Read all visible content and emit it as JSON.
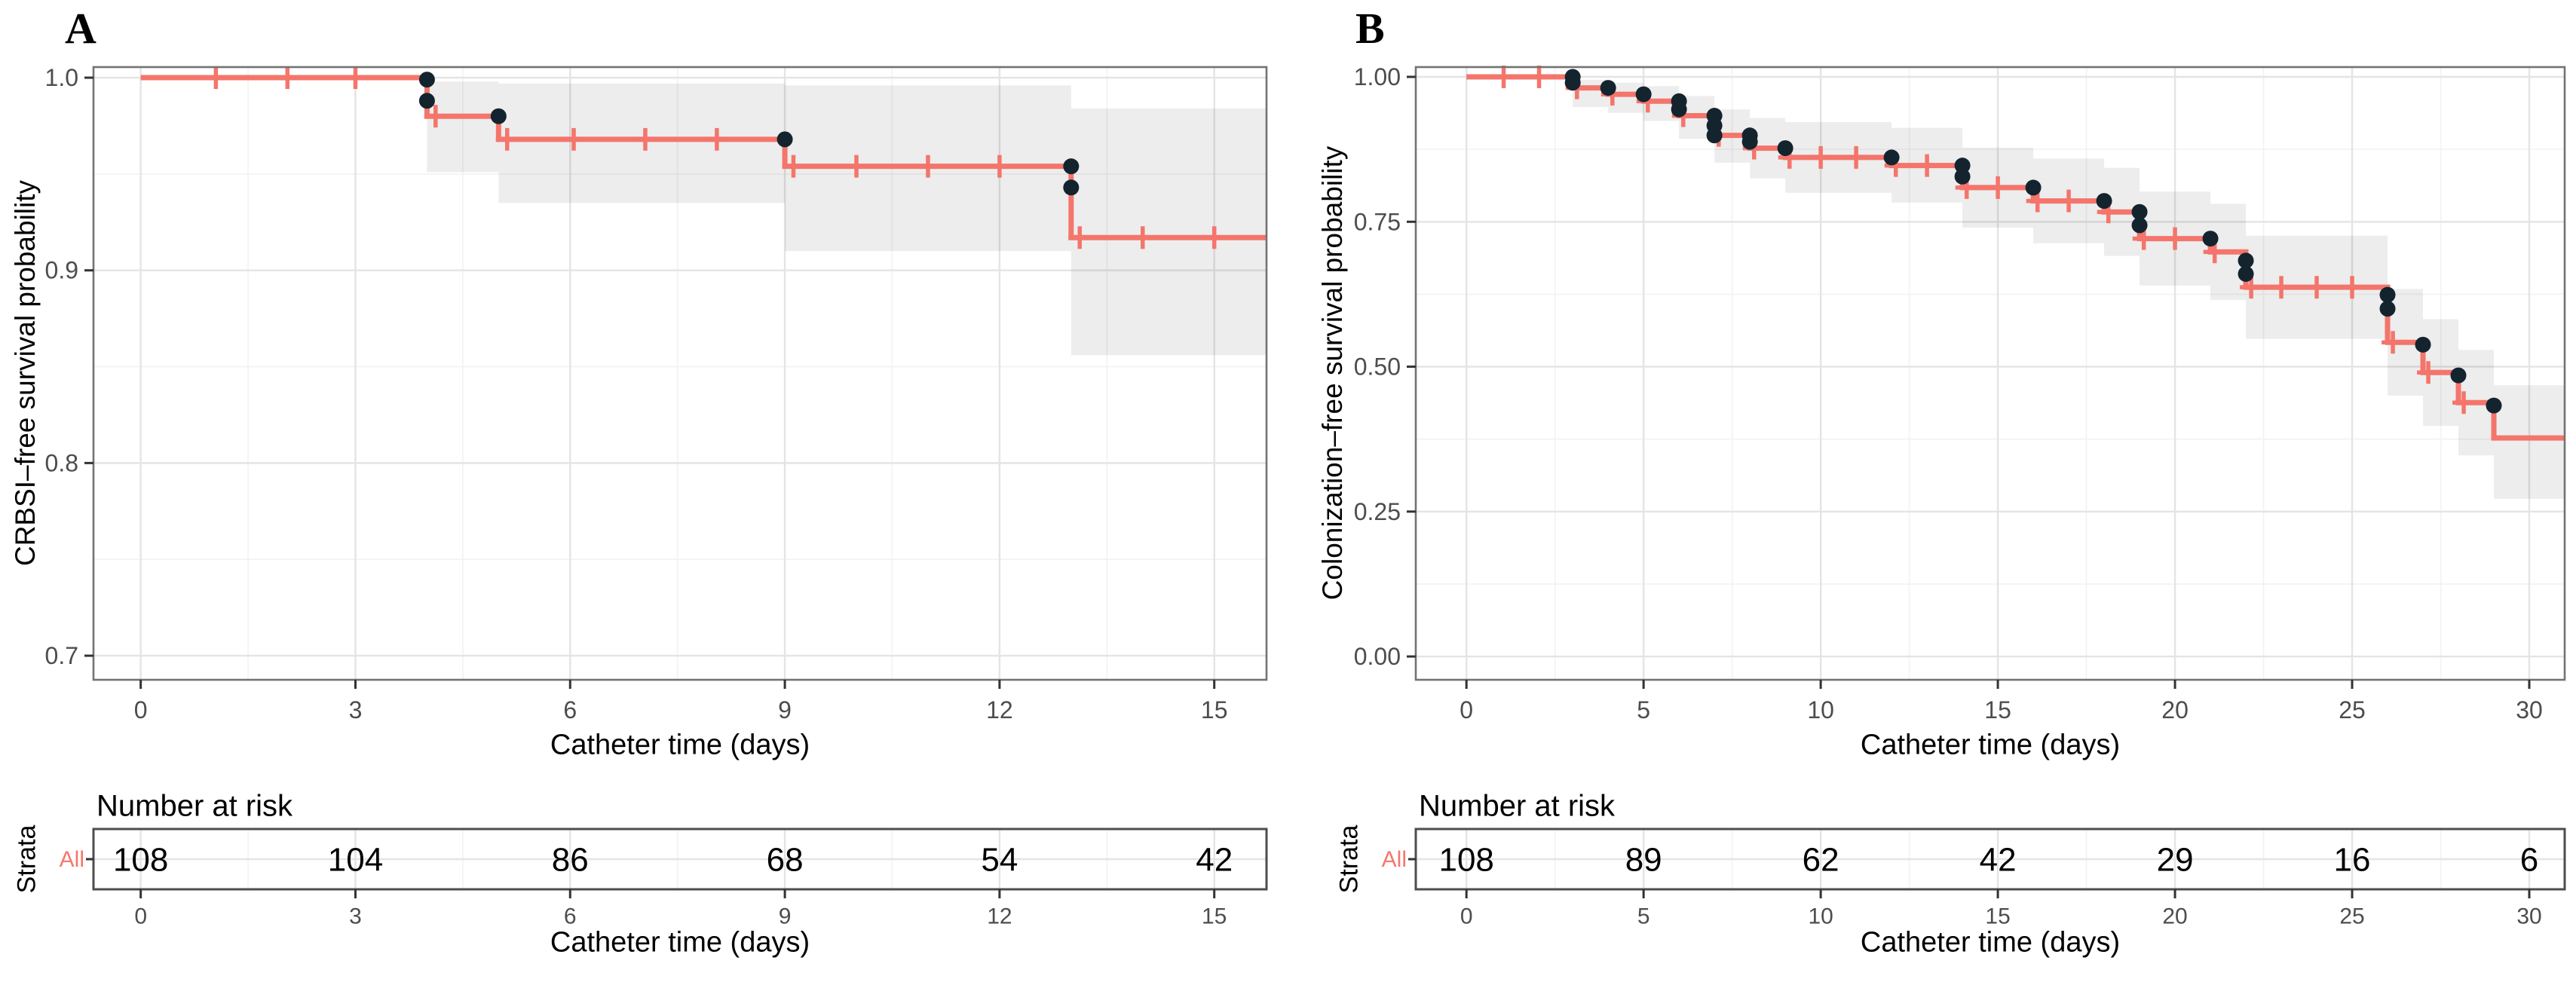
{
  "figure": {
    "colors": {
      "curve": "#F4756B",
      "event_dot": "#14242F",
      "ribbon_fill": "rgba(0,0,0,0.072)",
      "grid_major": "#E4E4E4",
      "grid_minor": "#F2F2F2",
      "axis_text": "#4D4D4D",
      "tick_mark": "#333333",
      "panel_border": "#737373",
      "table_border": "#4D4D4D",
      "strata_color": "#F8766D",
      "background": "#FFFFFF"
    }
  },
  "chart_data": [
    {
      "type": "line",
      "subtype": "kaplan-meier-step",
      "panel_label": "A",
      "xlabel": "Catheter time (days)",
      "ylabel": "CRBSI–free survival probability",
      "risk_table_title": "Number at risk",
      "risk_xlabel": "Catheter time (days)",
      "strata_axis_label": "Strata",
      "strata_name": "All",
      "legend": "none",
      "grid": true,
      "xlim": [
        -0.66,
        15.73
      ],
      "ylim": [
        0.6875,
        1.0055
      ],
      "x_major_ticks": [
        0,
        3,
        6,
        9,
        12,
        15
      ],
      "x_tick_labels": [
        "0",
        "3",
        "6",
        "9",
        "12",
        "15"
      ],
      "x_minor_ticks": [
        1.5,
        4.5,
        7.5,
        10.5,
        13.5
      ],
      "y_major_ticks": [
        0.7,
        0.8,
        0.9,
        1.0
      ],
      "y_tick_labels": [
        "0.7",
        "0.8",
        "0.9",
        "1.0"
      ],
      "y_minor_ticks": [
        0.75,
        0.85,
        0.95
      ],
      "km_steps": [
        {
          "t0": 0,
          "t1": 4,
          "s": 1.0
        },
        {
          "t0": 4,
          "t1": 5,
          "s": 0.98
        },
        {
          "t0": 5,
          "t1": 9,
          "s": 0.968
        },
        {
          "t0": 9,
          "t1": 13,
          "s": 0.954
        },
        {
          "t0": 13,
          "t1": 15.73,
          "s": 0.917
        }
      ],
      "ci_ribbon": [
        {
          "t0": 4,
          "t1": 5,
          "lo": 0.951,
          "hi": 0.998
        },
        {
          "t0": 5,
          "t1": 9,
          "lo": 0.935,
          "hi": 0.997
        },
        {
          "t0": 9,
          "t1": 13,
          "lo": 0.91,
          "hi": 0.996
        },
        {
          "t0": 13,
          "t1": 15.73,
          "lo": 0.856,
          "hi": 0.984
        }
      ],
      "event_dots": [
        {
          "t": 4,
          "s": 0.999
        },
        {
          "t": 4,
          "s": 0.988
        },
        {
          "t": 5,
          "s": 0.98
        },
        {
          "t": 9,
          "s": 0.968
        },
        {
          "t": 13,
          "s": 0.954
        },
        {
          "t": 13,
          "s": 0.943
        }
      ],
      "censor_marks": [
        {
          "t": 1.05,
          "s": 1.0
        },
        {
          "t": 2.05,
          "s": 1.0
        },
        {
          "t": 3.0,
          "s": 1.0
        },
        {
          "t": 4.12,
          "s": 0.98
        },
        {
          "t": 5.12,
          "s": 0.968
        },
        {
          "t": 6.05,
          "s": 0.968
        },
        {
          "t": 7.05,
          "s": 0.968
        },
        {
          "t": 8.05,
          "s": 0.968
        },
        {
          "t": 9.12,
          "s": 0.954
        },
        {
          "t": 10.0,
          "s": 0.954
        },
        {
          "t": 11.0,
          "s": 0.954
        },
        {
          "t": 12.0,
          "s": 0.954
        },
        {
          "t": 13.12,
          "s": 0.917
        },
        {
          "t": 14.0,
          "s": 0.917
        },
        {
          "t": 15.0,
          "s": 0.917
        }
      ],
      "number_at_risk": {
        "times": [
          0,
          3,
          6,
          9,
          12,
          15
        ],
        "tick_labels": [
          "0",
          "3",
          "6",
          "9",
          "12",
          "15"
        ],
        "counts": [
          "108",
          "104",
          "86",
          "68",
          "54",
          "42"
        ]
      }
    },
    {
      "type": "line",
      "subtype": "kaplan-meier-step",
      "panel_label": "B",
      "xlabel": "Catheter time (days)",
      "ylabel": "Colonization–free survival probability",
      "risk_table_title": "Number at risk",
      "risk_xlabel": "Catheter time (days)",
      "strata_axis_label": "Strata",
      "strata_name": "All",
      "legend": "none",
      "grid": true,
      "xlim": [
        -1.43,
        31.0
      ],
      "ylim": [
        -0.0402,
        1.0169
      ],
      "x_major_ticks": [
        0,
        5,
        10,
        15,
        20,
        25,
        30
      ],
      "x_tick_labels": [
        "0",
        "5",
        "10",
        "15",
        "20",
        "25",
        "30"
      ],
      "x_minor_ticks": [
        2.5,
        7.5,
        12.5,
        17.5,
        22.5,
        27.5
      ],
      "y_major_ticks": [
        0.0,
        0.25,
        0.5,
        0.75,
        1.0
      ],
      "y_tick_labels": [
        "0.00",
        "0.25",
        "0.50",
        "0.75",
        "1.00"
      ],
      "y_minor_ticks": [
        0.125,
        0.375,
        0.625,
        0.875
      ],
      "km_steps": [
        {
          "t0": 0,
          "t1": 3,
          "s": 1.0
        },
        {
          "t0": 3,
          "t1": 4,
          "s": 0.981
        },
        {
          "t0": 4,
          "t1": 5,
          "s": 0.97
        },
        {
          "t0": 5,
          "t1": 6,
          "s": 0.958
        },
        {
          "t0": 6,
          "t1": 7,
          "s": 0.933
        },
        {
          "t0": 7,
          "t1": 8,
          "s": 0.899
        },
        {
          "t0": 8,
          "t1": 9,
          "s": 0.877
        },
        {
          "t0": 9,
          "t1": 12,
          "s": 0.861
        },
        {
          "t0": 12,
          "t1": 14,
          "s": 0.847
        },
        {
          "t0": 14,
          "t1": 16,
          "s": 0.809
        },
        {
          "t0": 16,
          "t1": 18,
          "s": 0.786
        },
        {
          "t0": 18,
          "t1": 19,
          "s": 0.767
        },
        {
          "t0": 19,
          "t1": 21,
          "s": 0.721
        },
        {
          "t0": 21,
          "t1": 22,
          "s": 0.698
        },
        {
          "t0": 22,
          "t1": 26,
          "s": 0.637
        },
        {
          "t0": 26,
          "t1": 27,
          "s": 0.542
        },
        {
          "t0": 27,
          "t1": 28,
          "s": 0.49
        },
        {
          "t0": 28,
          "t1": 29,
          "s": 0.438
        },
        {
          "t0": 29,
          "t1": 31.0,
          "s": 0.377
        }
      ],
      "ci_ribbon": [
        {
          "t0": 3,
          "t1": 4,
          "lo": 0.948,
          "hi": 0.995
        },
        {
          "t0": 4,
          "t1": 5,
          "lo": 0.938,
          "hi": 0.99
        },
        {
          "t0": 5,
          "t1": 6,
          "lo": 0.924,
          "hi": 0.984
        },
        {
          "t0": 6,
          "t1": 7,
          "lo": 0.893,
          "hi": 0.967
        },
        {
          "t0": 7,
          "t1": 8,
          "lo": 0.852,
          "hi": 0.944
        },
        {
          "t0": 8,
          "t1": 9,
          "lo": 0.825,
          "hi": 0.929
        },
        {
          "t0": 9,
          "t1": 12,
          "lo": 0.8,
          "hi": 0.922
        },
        {
          "t0": 12,
          "t1": 14,
          "lo": 0.783,
          "hi": 0.912
        },
        {
          "t0": 14,
          "t1": 16,
          "lo": 0.74,
          "hi": 0.878
        },
        {
          "t0": 16,
          "t1": 18,
          "lo": 0.713,
          "hi": 0.859
        },
        {
          "t0": 18,
          "t1": 19,
          "lo": 0.691,
          "hi": 0.843
        },
        {
          "t0": 19,
          "t1": 21,
          "lo": 0.64,
          "hi": 0.802
        },
        {
          "t0": 21,
          "t1": 22,
          "lo": 0.615,
          "hi": 0.781
        },
        {
          "t0": 22,
          "t1": 26,
          "lo": 0.548,
          "hi": 0.726
        },
        {
          "t0": 26,
          "t1": 27,
          "lo": 0.45,
          "hi": 0.634
        },
        {
          "t0": 27,
          "t1": 28,
          "lo": 0.398,
          "hi": 0.582
        },
        {
          "t0": 28,
          "t1": 29,
          "lo": 0.347,
          "hi": 0.529
        },
        {
          "t0": 29,
          "t1": 31.0,
          "lo": 0.272,
          "hi": 0.468
        }
      ],
      "event_dots": [
        {
          "t": 3,
          "s": 1.0
        },
        {
          "t": 3,
          "s": 0.99
        },
        {
          "t": 4,
          "s": 0.981
        },
        {
          "t": 5,
          "s": 0.97
        },
        {
          "t": 6,
          "s": 0.958
        },
        {
          "t": 6,
          "s": 0.944
        },
        {
          "t": 7,
          "s": 0.933
        },
        {
          "t": 7,
          "s": 0.916
        },
        {
          "t": 7,
          "s": 0.899
        },
        {
          "t": 8,
          "s": 0.899
        },
        {
          "t": 8,
          "s": 0.888
        },
        {
          "t": 9,
          "s": 0.877
        },
        {
          "t": 12,
          "s": 0.861
        },
        {
          "t": 14,
          "s": 0.847
        },
        {
          "t": 14,
          "s": 0.828
        },
        {
          "t": 16,
          "s": 0.809
        },
        {
          "t": 18,
          "s": 0.786
        },
        {
          "t": 19,
          "s": 0.767
        },
        {
          "t": 19,
          "s": 0.744
        },
        {
          "t": 21,
          "s": 0.721
        },
        {
          "t": 22,
          "s": 0.683
        },
        {
          "t": 22,
          "s": 0.66
        },
        {
          "t": 26,
          "s": 0.624
        },
        {
          "t": 26,
          "s": 0.6
        },
        {
          "t": 27,
          "s": 0.538
        },
        {
          "t": 28,
          "s": 0.485
        },
        {
          "t": 29,
          "s": 0.433
        }
      ],
      "censor_marks": [
        {
          "t": 1.05,
          "s": 1.0
        },
        {
          "t": 2.05,
          "s": 1.0
        },
        {
          "t": 3.12,
          "s": 0.981
        },
        {
          "t": 4.12,
          "s": 0.97
        },
        {
          "t": 5.12,
          "s": 0.958
        },
        {
          "t": 6.12,
          "s": 0.933
        },
        {
          "t": 7.12,
          "s": 0.899
        },
        {
          "t": 8.12,
          "s": 0.877
        },
        {
          "t": 9.12,
          "s": 0.861
        },
        {
          "t": 10.0,
          "s": 0.861
        },
        {
          "t": 11.0,
          "s": 0.861
        },
        {
          "t": 12.12,
          "s": 0.847
        },
        {
          "t": 13.0,
          "s": 0.847
        },
        {
          "t": 14.12,
          "s": 0.809
        },
        {
          "t": 15.0,
          "s": 0.809
        },
        {
          "t": 16.12,
          "s": 0.786
        },
        {
          "t": 17.0,
          "s": 0.786
        },
        {
          "t": 18.12,
          "s": 0.767
        },
        {
          "t": 19.12,
          "s": 0.721
        },
        {
          "t": 20.0,
          "s": 0.721
        },
        {
          "t": 21.12,
          "s": 0.698
        },
        {
          "t": 22.15,
          "s": 0.637
        },
        {
          "t": 23.0,
          "s": 0.637
        },
        {
          "t": 24.0,
          "s": 0.637
        },
        {
          "t": 25.0,
          "s": 0.637
        },
        {
          "t": 26.15,
          "s": 0.542
        },
        {
          "t": 27.15,
          "s": 0.49
        },
        {
          "t": 28.15,
          "s": 0.438
        }
      ],
      "number_at_risk": {
        "times": [
          0,
          5,
          10,
          15,
          20,
          25,
          30
        ],
        "tick_labels": [
          "0",
          "5",
          "10",
          "15",
          "20",
          "25",
          "30"
        ],
        "counts": [
          "108",
          "89",
          "62",
          "42",
          "29",
          "16",
          "6"
        ]
      }
    }
  ]
}
